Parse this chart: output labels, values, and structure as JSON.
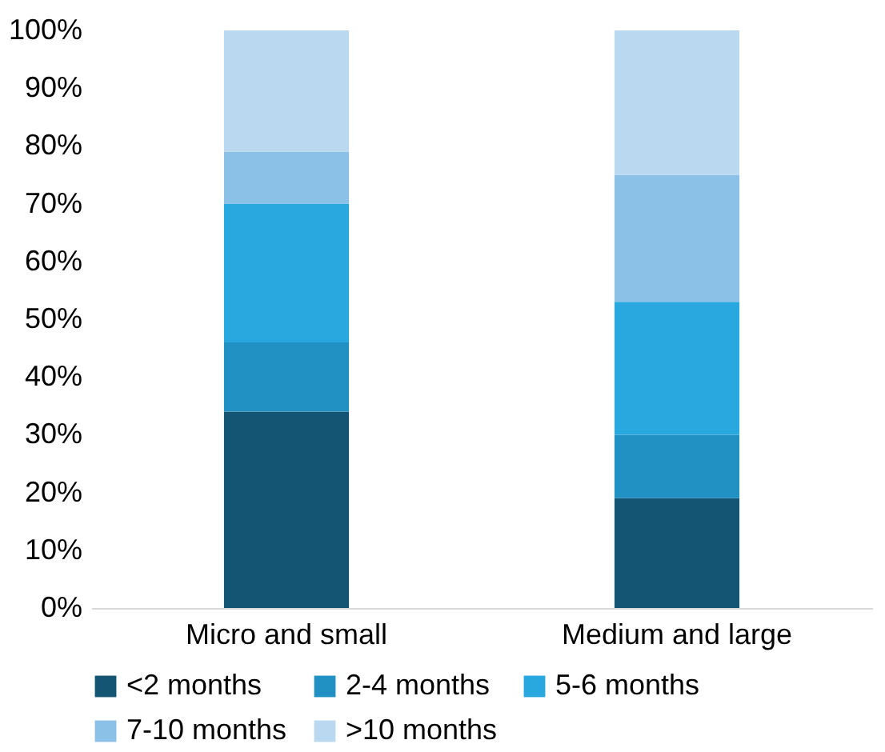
{
  "chart_data": {
    "type": "bar",
    "stacked": true,
    "categories": [
      "Micro and small",
      "Medium and large"
    ],
    "series": [
      {
        "name": "<2 months",
        "color": "#145574",
        "values": [
          34,
          19
        ]
      },
      {
        "name": "2-4 months",
        "color": "#2191c4",
        "values": [
          12,
          11
        ]
      },
      {
        "name": "5-6 months",
        "color": "#29a8e0",
        "values": [
          24,
          23
        ]
      },
      {
        "name": "7-10 months",
        "color": "#8bc1e6",
        "values": [
          9,
          22
        ]
      },
      {
        "name": ">10 months",
        "color": "#bad9f0",
        "values": [
          21,
          25
        ]
      }
    ],
    "ylim": [
      0,
      100
    ],
    "yticks": [
      {
        "value": 0,
        "label": "0%"
      },
      {
        "value": 10,
        "label": "10%"
      },
      {
        "value": 20,
        "label": "20%"
      },
      {
        "value": 30,
        "label": "30%"
      },
      {
        "value": 40,
        "label": "40%"
      },
      {
        "value": 50,
        "label": "50%"
      },
      {
        "value": 60,
        "label": "60%"
      },
      {
        "value": 70,
        "label": "70%"
      },
      {
        "value": 80,
        "label": "80%"
      },
      {
        "value": 90,
        "label": "90%"
      },
      {
        "value": 100,
        "label": "100%"
      }
    ],
    "grid": false,
    "legend": "bottom"
  }
}
